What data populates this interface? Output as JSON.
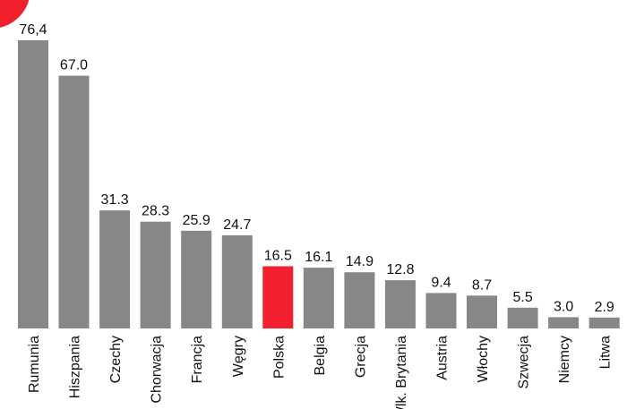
{
  "chart_data": {
    "type": "bar",
    "categories": [
      "Rumunia",
      "Hiszpania",
      "Czechy",
      "Chorwacja",
      "Francja",
      "Węgry",
      "Polska",
      "Belgia",
      "Grecja",
      "Wlk. Brytania",
      "Austria",
      "Włochy",
      "Szwecja",
      "Niemcy",
      "Litwa"
    ],
    "values": [
      76.4,
      67.0,
      31.3,
      28.3,
      25.9,
      24.7,
      16.5,
      16.1,
      14.9,
      12.8,
      9.4,
      8.7,
      5.5,
      3.0,
      2.9
    ],
    "value_labels": [
      "76,4",
      "67.0",
      "31.3",
      "28.3",
      "25.9",
      "24.7",
      "16.5",
      "16.1",
      "14.9",
      "12.8",
      "9.4",
      "8.7",
      "5.5",
      "3.0",
      "2.9"
    ],
    "highlight_category": "Polska",
    "colors": {
      "bar": "#878787",
      "highlight": "#f2202f",
      "decor": "#f2202f"
    },
    "ylim": [
      0,
      76.4
    ],
    "grid": false,
    "legend": "none"
  }
}
